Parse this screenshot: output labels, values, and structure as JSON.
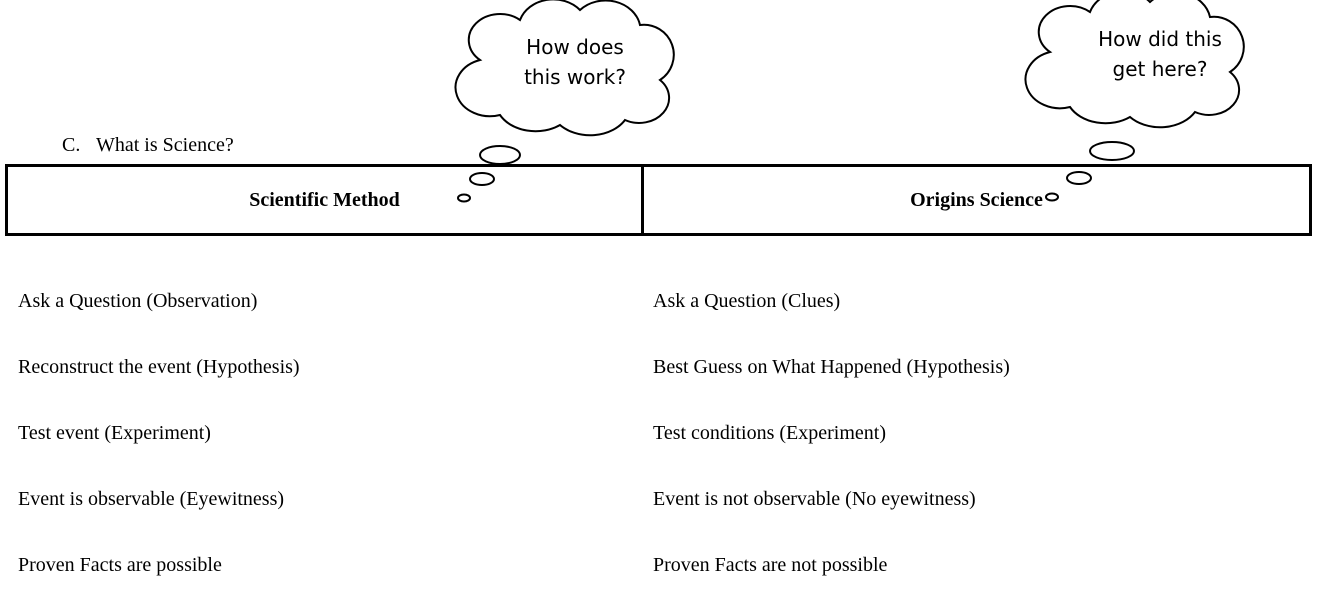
{
  "heading": {
    "label": "C.",
    "text": "What is Science?"
  },
  "table": {
    "headers": [
      "Scientific Method",
      "Origins Science"
    ]
  },
  "bubbles": [
    {
      "lines": [
        "How does",
        "this work?"
      ]
    },
    {
      "lines": [
        "How did this",
        "get here?"
      ]
    }
  ],
  "columns": [
    {
      "items": [
        "Ask a Question (Observation)",
        "Reconstruct the event (Hypothesis)",
        "Test event (Experiment)",
        "Event is observable (Eyewitness)",
        "Proven Facts are possible"
      ]
    },
    {
      "items": [
        "Ask a Question (Clues)",
        "Best Guess on What Happened (Hypothesis)",
        "Test conditions (Experiment)",
        "Event is not observable (No eyewitness)",
        "Proven Facts are not possible"
      ]
    }
  ]
}
